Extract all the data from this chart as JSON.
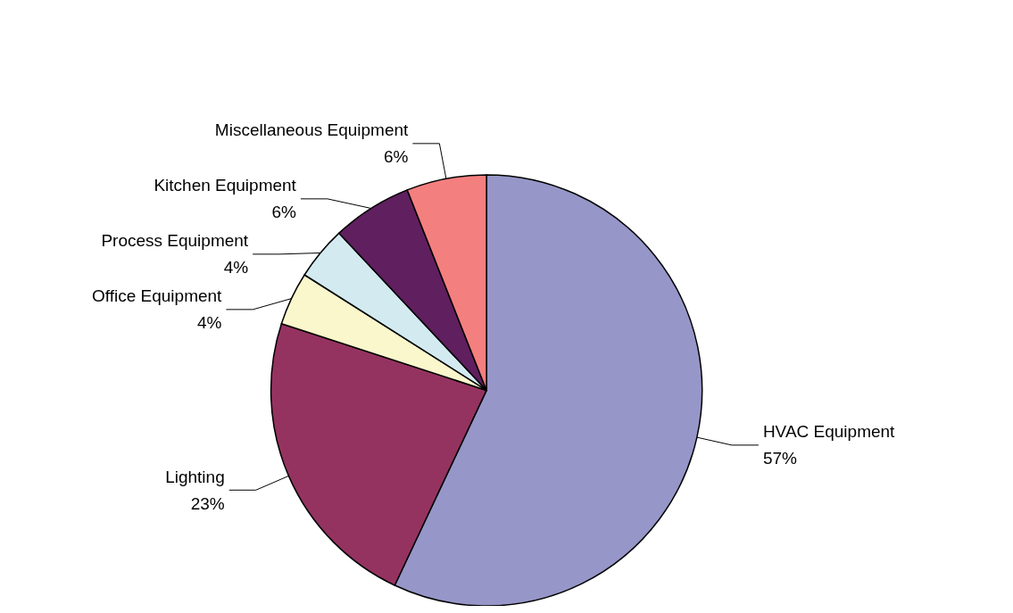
{
  "chart_data": {
    "type": "pie",
    "categories": [
      "HVAC Equipment",
      "Lighting",
      "Office Equipment",
      "Process Equipment",
      "Kitchen Equipment",
      "Miscellaneous Equipment"
    ],
    "values": [
      57,
      23,
      4,
      4,
      6,
      6
    ],
    "colors": [
      "#9696c8",
      "#953360",
      "#fbf7cc",
      "#d3ebf0",
      "#601f5f",
      "#f47f7f"
    ],
    "value_labels": [
      "57%",
      "23%",
      "4%",
      "4%",
      "6%",
      "6%"
    ]
  }
}
